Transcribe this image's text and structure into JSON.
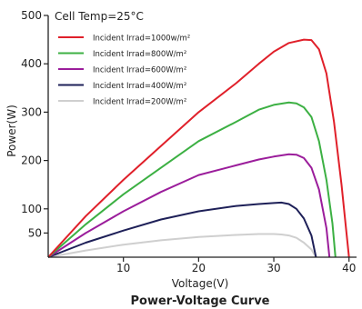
{
  "chart_data": {
    "type": "line",
    "title": "Power-Voltage Curve",
    "xlabel": "Voltage(V)",
    "ylabel": "Power(W)",
    "xlim": [
      0,
      41
    ],
    "ylim": [
      0,
      500
    ],
    "xticks": [
      10,
      20,
      30,
      40
    ],
    "yticks": [
      50,
      100,
      200,
      300,
      400,
      500
    ],
    "grid": false,
    "legend_position": "top-left",
    "annotation": "Cell Temp=25°C",
    "series": [
      {
        "name": "Incident Irrad=1000w/m²",
        "color": "#e0202a",
        "points": [
          [
            0,
            0
          ],
          [
            5,
            85
          ],
          [
            10,
            160
          ],
          [
            15,
            230
          ],
          [
            20,
            300
          ],
          [
            25,
            360
          ],
          [
            28,
            400
          ],
          [
            30,
            425
          ],
          [
            32,
            443
          ],
          [
            34,
            450
          ],
          [
            35,
            449
          ],
          [
            36,
            430
          ],
          [
            37,
            380
          ],
          [
            38,
            280
          ],
          [
            39,
            150
          ],
          [
            39.6,
            60
          ],
          [
            40,
            0
          ]
        ]
      },
      {
        "name": "Incident Irrad=800W/m²",
        "color": "#3cb043",
        "points": [
          [
            0,
            0
          ],
          [
            5,
            68
          ],
          [
            10,
            130
          ],
          [
            15,
            185
          ],
          [
            20,
            240
          ],
          [
            25,
            280
          ],
          [
            28,
            305
          ],
          [
            30,
            315
          ],
          [
            32,
            320
          ],
          [
            33,
            318
          ],
          [
            34,
            310
          ],
          [
            35,
            290
          ],
          [
            36,
            240
          ],
          [
            37,
            160
          ],
          [
            37.8,
            70
          ],
          [
            38.2,
            0
          ]
        ]
      },
      {
        "name": "Incident Irrad=600W/m²",
        "color": "#9b1d9b",
        "points": [
          [
            0,
            0
          ],
          [
            5,
            50
          ],
          [
            10,
            95
          ],
          [
            15,
            135
          ],
          [
            20,
            170
          ],
          [
            25,
            190
          ],
          [
            28,
            202
          ],
          [
            30,
            208
          ],
          [
            32,
            213
          ],
          [
            33,
            212
          ],
          [
            34,
            205
          ],
          [
            35,
            185
          ],
          [
            36,
            140
          ],
          [
            37,
            60
          ],
          [
            37.4,
            0
          ]
        ]
      },
      {
        "name": "Incident Irrad=400W/m²",
        "color": "#1e2058",
        "points": [
          [
            0,
            0
          ],
          [
            5,
            30
          ],
          [
            10,
            55
          ],
          [
            15,
            78
          ],
          [
            20,
            95
          ],
          [
            25,
            106
          ],
          [
            28,
            110
          ],
          [
            30,
            112
          ],
          [
            31,
            113
          ],
          [
            32,
            110
          ],
          [
            33,
            100
          ],
          [
            34,
            80
          ],
          [
            35,
            45
          ],
          [
            35.6,
            0
          ]
        ]
      },
      {
        "name": "Incident Irrad=200W/m²",
        "color": "#cfcfcf",
        "points": [
          [
            0,
            0
          ],
          [
            5,
            14
          ],
          [
            10,
            26
          ],
          [
            15,
            35
          ],
          [
            20,
            42
          ],
          [
            25,
            46
          ],
          [
            28,
            48
          ],
          [
            30,
            48
          ],
          [
            31,
            47
          ],
          [
            32,
            45
          ],
          [
            33,
            40
          ],
          [
            34,
            30
          ],
          [
            35,
            16
          ],
          [
            35.6,
            0
          ]
        ]
      }
    ]
  }
}
